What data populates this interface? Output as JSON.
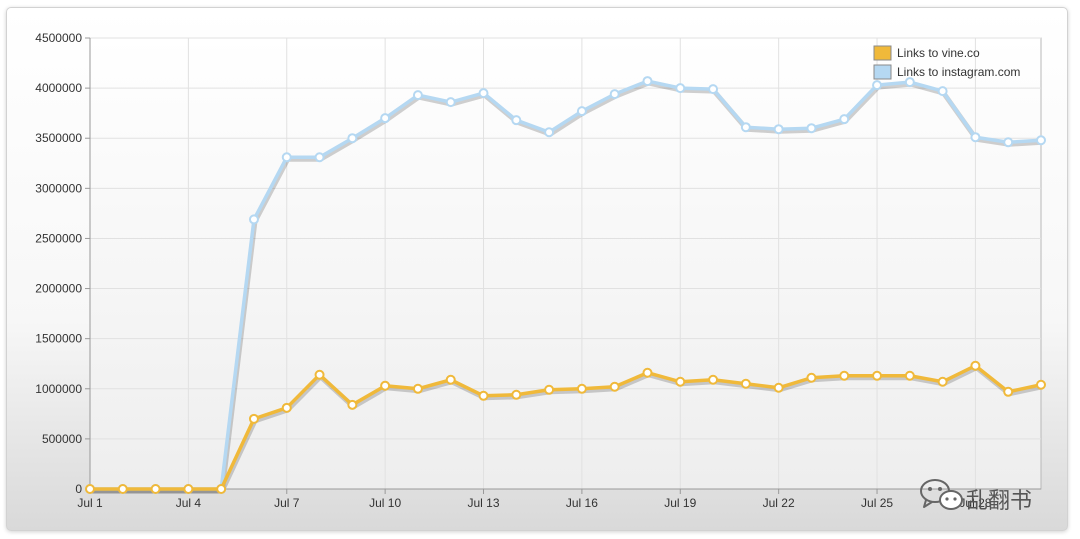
{
  "chart_data": {
    "type": "line",
    "x_tick_labels": [
      "Jul 1",
      "Jul 4",
      "Jul 7",
      "Jul 10",
      "Jul 13",
      "Jul 16",
      "Jul 19",
      "Jul 22",
      "Jul 25",
      "Jul 28"
    ],
    "x_tick_index": [
      0,
      3,
      6,
      9,
      12,
      15,
      18,
      21,
      24,
      27
    ],
    "ylim": [
      0,
      4500000
    ],
    "y_ticks": [
      0,
      500000,
      1000000,
      1500000,
      2000000,
      2500000,
      3000000,
      3500000,
      4000000,
      4500000
    ],
    "grid": true,
    "legend_position": "top-right",
    "series": [
      {
        "name": "Links to vine.co",
        "color": "#f0b93a",
        "values": [
          0,
          0,
          0,
          0,
          0,
          700000,
          810000,
          1140000,
          840000,
          1030000,
          1000000,
          1090000,
          930000,
          940000,
          990000,
          1000000,
          1020000,
          1160000,
          1070000,
          1090000,
          1050000,
          1010000,
          1110000,
          1130000,
          1130000,
          1130000,
          1070000,
          1230000,
          970000,
          1040000
        ]
      },
      {
        "name": "Links to instagram.com",
        "color": "#b5d8f2",
        "values": [
          0,
          0,
          0,
          0,
          0,
          2690000,
          3310000,
          3310000,
          3500000,
          3700000,
          3930000,
          3860000,
          3950000,
          3680000,
          3560000,
          3770000,
          3940000,
          4070000,
          4000000,
          3990000,
          3610000,
          3590000,
          3600000,
          3690000,
          4030000,
          4060000,
          3970000,
          3510000,
          3460000,
          3480000
        ]
      }
    ]
  },
  "watermark": {
    "icon": "wechat-icon",
    "text": "乱翻书"
  }
}
